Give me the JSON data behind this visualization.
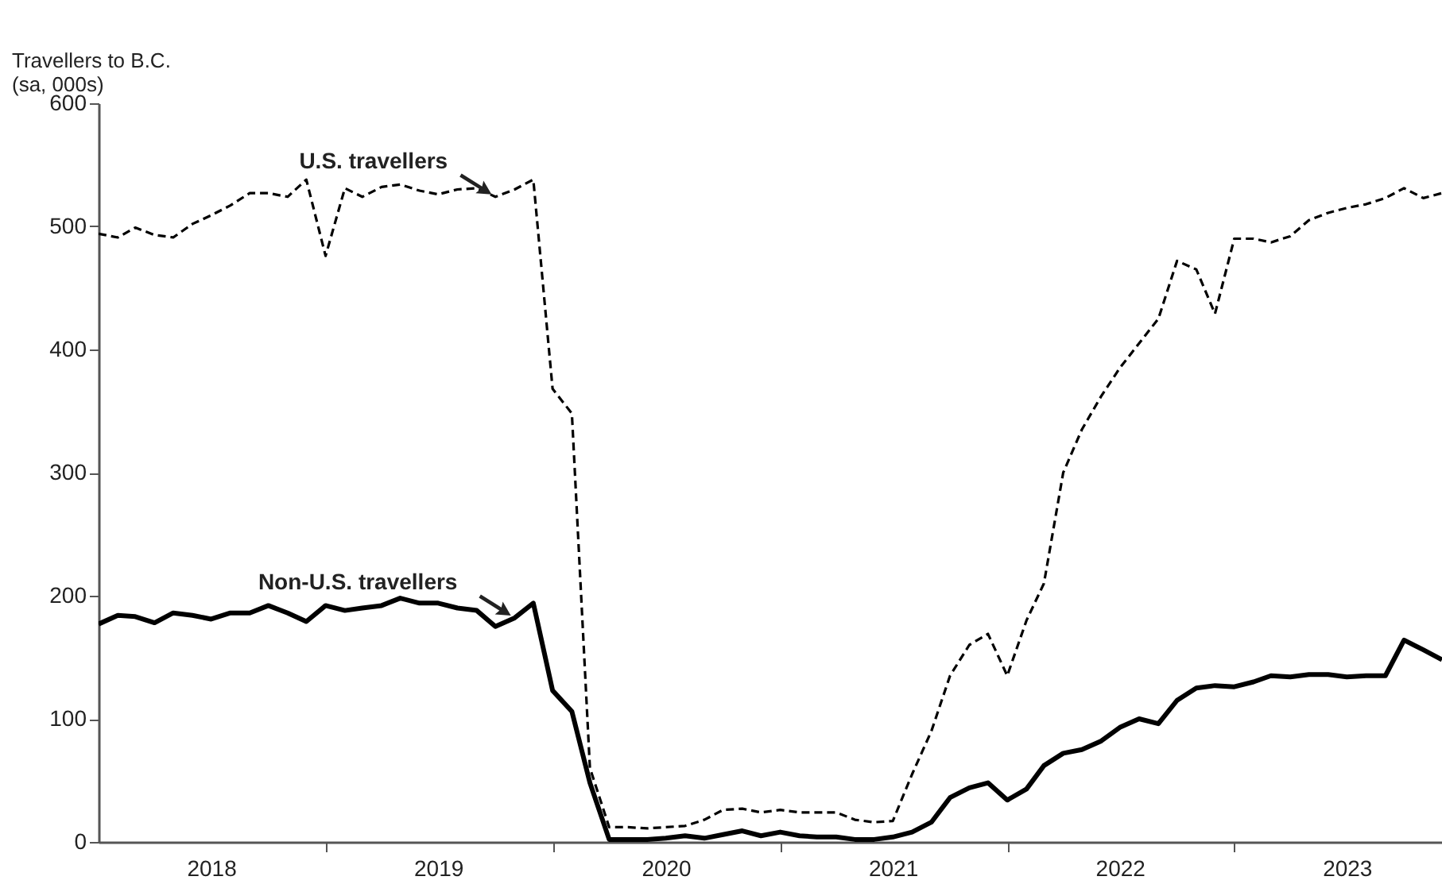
{
  "chart_data": {
    "type": "line",
    "ylabel": "Travellers to B.C.\n(sa, 000s)",
    "x": [
      "2018-01",
      "2018-02",
      "2018-03",
      "2018-04",
      "2018-05",
      "2018-06",
      "2018-07",
      "2018-08",
      "2018-09",
      "2018-10",
      "2018-11",
      "2018-12",
      "2019-01",
      "2019-02",
      "2019-03",
      "2019-04",
      "2019-05",
      "2019-06",
      "2019-07",
      "2019-08",
      "2019-09",
      "2019-10",
      "2019-11",
      "2019-12",
      "2020-01",
      "2020-02",
      "2020-03",
      "2020-04",
      "2020-05",
      "2020-06",
      "2020-07",
      "2020-08",
      "2020-09",
      "2020-10",
      "2020-11",
      "2020-12",
      "2021-01",
      "2021-02",
      "2021-03",
      "2021-04",
      "2021-05",
      "2021-06",
      "2021-07",
      "2021-08",
      "2021-09",
      "2021-10",
      "2021-11",
      "2021-12",
      "2022-01",
      "2022-02",
      "2022-03",
      "2022-04",
      "2022-05",
      "2022-06",
      "2022-07",
      "2022-08",
      "2022-09",
      "2022-10",
      "2022-11",
      "2022-12",
      "2023-01",
      "2023-02",
      "2023-03",
      "2023-04",
      "2023-05",
      "2023-06",
      "2023-07",
      "2023-08",
      "2023-09",
      "2023-10",
      "2023-11",
      "2023-12"
    ],
    "series": [
      {
        "color": "#000000",
        "line_style": "dashed",
        "values": [
          494,
          491,
          499,
          493,
          491,
          502,
          509,
          517,
          527,
          527,
          524,
          538,
          476,
          531,
          524,
          532,
          534,
          529,
          526,
          530,
          531,
          524,
          530,
          538,
          368,
          348,
          60,
          12,
          12,
          11,
          12,
          13,
          18,
          26,
          27,
          24,
          26,
          24,
          24,
          24,
          18,
          16,
          17,
          55,
          90,
          135,
          160,
          169,
          135,
          180,
          210,
          300,
          335,
          362,
          385,
          405,
          425,
          472,
          465,
          429,
          490,
          490,
          487,
          492,
          505,
          511,
          515,
          518,
          523,
          531,
          523,
          527
        ]
      },
      {
        "color": "#000000",
        "line_style": "solid",
        "values": [
          177,
          184,
          183,
          178,
          186,
          184,
          181,
          186,
          186,
          192,
          186,
          179,
          192,
          188,
          190,
          192,
          198,
          194,
          194,
          190,
          188,
          175,
          182,
          194,
          123,
          106,
          48,
          2,
          2,
          2,
          3,
          5,
          3,
          6,
          9,
          5,
          8,
          5,
          4,
          4,
          2,
          2,
          4,
          8,
          16,
          36,
          44,
          48,
          34,
          43,
          62,
          72,
          75,
          82,
          93,
          100,
          96,
          115,
          125,
          127,
          126,
          130,
          135,
          134,
          136,
          136,
          134,
          135,
          135,
          164,
          156,
          148
        ]
      }
    ],
    "annotations": [
      {
        "text": "U.S. travellers",
        "x": "2019-10",
        "y": 524
      },
      {
        "text": "Non-U.S. travellers",
        "x": "2019-11",
        "y": 182
      }
    ],
    "xlim": [
      "2018-01",
      "2023-12"
    ],
    "xticks": [
      {
        "value": "2018-07",
        "label": "2018"
      },
      {
        "value": "2019-01",
        "label": null
      },
      {
        "value": "2019-07",
        "label": "2019"
      },
      {
        "value": "2020-01",
        "label": null
      },
      {
        "value": "2020-07",
        "label": "2020"
      },
      {
        "value": "2021-01",
        "label": null
      },
      {
        "value": "2021-07",
        "label": "2021"
      },
      {
        "value": "2022-01",
        "label": null
      },
      {
        "value": "2022-07",
        "label": "2022"
      },
      {
        "value": "2023-01",
        "label": null
      },
      {
        "value": "2023-07",
        "label": "2023"
      }
    ],
    "ylim": [
      0,
      600
    ],
    "yticks": [
      0,
      100,
      200,
      300,
      400,
      500,
      600
    ],
    "grid": false
  }
}
